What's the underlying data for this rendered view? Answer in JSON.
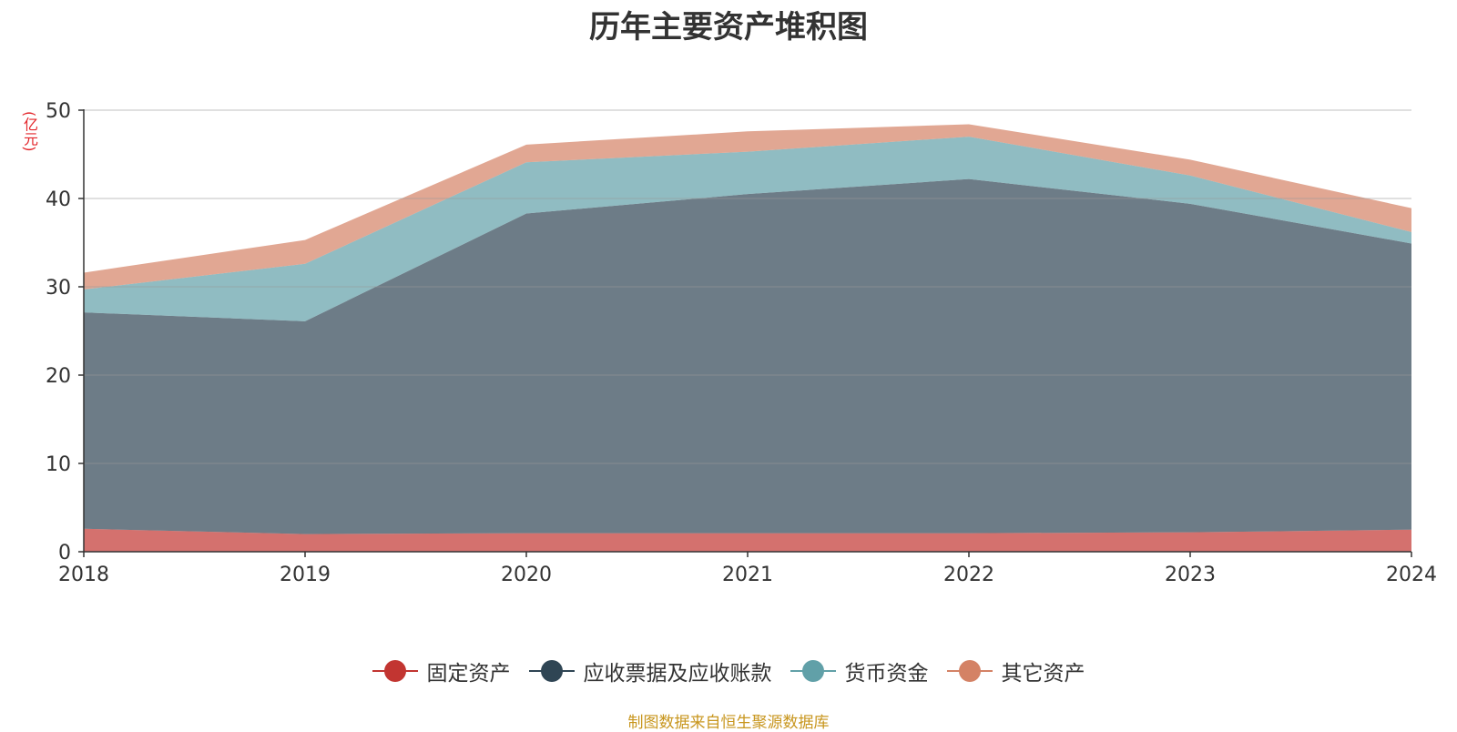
{
  "header": {
    "title": "历年主要资产堆积图"
  },
  "unit_label": "(亿元)",
  "footer": {
    "source": "制图数据来自恒生聚源数据库"
  },
  "chart_data": {
    "type": "area",
    "stacked": true,
    "title": "历年主要资产堆积图",
    "ylabel": "(亿元)",
    "xlabel": "",
    "categories": [
      "2018",
      "2019",
      "2020",
      "2021",
      "2022",
      "2023",
      "2024"
    ],
    "ylim": [
      0,
      50
    ],
    "yticks": [
      0,
      10,
      20,
      30,
      40,
      50
    ],
    "grid": true,
    "legend_position": "bottom",
    "series": [
      {
        "name": "固定资产",
        "color": "#c23531",
        "values": [
          2.6,
          2.0,
          2.1,
          2.1,
          2.1,
          2.2,
          2.5
        ]
      },
      {
        "name": "应收票据及应收账款",
        "color": "#2f4554",
        "values": [
          24.5,
          24.1,
          36.2,
          38.4,
          40.1,
          37.2,
          32.4
        ]
      },
      {
        "name": "货币资金",
        "color": "#61a0a8",
        "values": [
          2.6,
          6.5,
          5.8,
          4.8,
          4.8,
          3.2,
          1.3
        ]
      },
      {
        "name": "其它资产",
        "color": "#d48265",
        "values": [
          1.9,
          2.7,
          2.0,
          2.3,
          1.4,
          1.8,
          2.7
        ]
      }
    ]
  }
}
